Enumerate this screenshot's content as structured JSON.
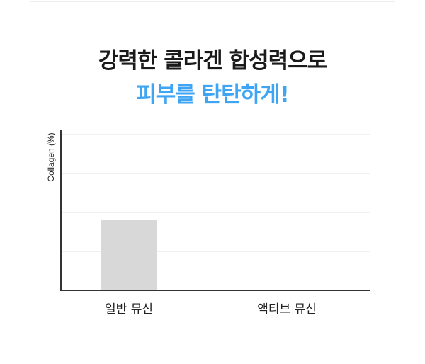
{
  "header": {
    "line1": "강력한 콜라겐 합성력으로",
    "line2": "피부를 탄탄하게!"
  },
  "colors": {
    "title": "#1a1a1a",
    "accent": "#3ea4f4",
    "bar": "#d8d8d8"
  },
  "chart_data": {
    "type": "bar",
    "categories": [
      "일반 뮤신",
      "액티브 뮤신"
    ],
    "values": [
      1.8,
      0
    ],
    "ylabel": "Collagen (%)",
    "xlabel": "",
    "ylim": [
      0,
      4
    ],
    "grid": true
  }
}
